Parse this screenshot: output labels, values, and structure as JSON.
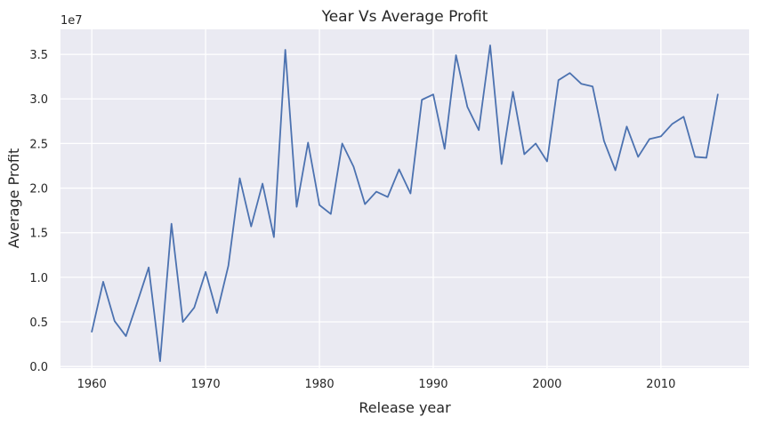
{
  "chart_data": {
    "type": "line",
    "title": "Year Vs Average Profit",
    "xlabel": "Release year",
    "ylabel": "Average Profit",
    "y_offset_label": "1e7",
    "xlim": [
      1957.25,
      2017.75
    ],
    "ylim": [
      -0.18,
      37.8
    ],
    "x_ticks": [
      1960,
      1970,
      1980,
      1990,
      2000,
      2010
    ],
    "x_tick_labels": [
      "1960",
      "1970",
      "1980",
      "1990",
      "2000",
      "2010"
    ],
    "y_ticks": [
      0,
      5,
      10,
      15,
      20,
      25,
      30,
      35
    ],
    "y_tick_labels": [
      "0.0",
      "0.5",
      "1.0",
      "1.5",
      "2.0",
      "2.5",
      "3.0",
      "3.5"
    ],
    "grid": true,
    "series": [
      {
        "name": "Average Profit",
        "color": "#4c72b0",
        "x": [
          1960,
          1961,
          1962,
          1963,
          1964,
          1965,
          1966,
          1967,
          1968,
          1969,
          1970,
          1971,
          1972,
          1973,
          1974,
          1975,
          1976,
          1977,
          1978,
          1979,
          1980,
          1981,
          1982,
          1983,
          1984,
          1985,
          1986,
          1987,
          1988,
          1989,
          1990,
          1991,
          1992,
          1993,
          1994,
          1995,
          1996,
          1997,
          1998,
          1999,
          2000,
          2001,
          2002,
          2003,
          2004,
          2005,
          2006,
          2007,
          2008,
          2009,
          2010,
          2011,
          2012,
          2013,
          2014,
          2015
        ],
        "y": [
          3.9,
          9.5,
          5.1,
          3.4,
          7.2,
          11.1,
          0.6,
          16.0,
          5.0,
          6.6,
          10.6,
          6.0,
          11.3,
          21.1,
          15.7,
          20.5,
          14.5,
          35.5,
          17.9,
          25.1,
          18.1,
          17.1,
          25.0,
          22.4,
          18.2,
          19.6,
          19.0,
          22.1,
          19.4,
          29.9,
          30.5,
          24.4,
          34.9,
          29.1,
          26.5,
          36.0,
          22.7,
          30.8,
          23.8,
          25.0,
          23.0,
          32.1,
          32.9,
          31.7,
          31.4,
          25.3,
          22.0,
          26.9,
          23.5,
          25.5,
          25.8,
          27.2,
          28.0,
          23.5,
          23.4,
          30.5
        ]
      }
    ]
  },
  "colors": {
    "plot_background": "#eaeaf2",
    "grid": "#ffffff",
    "line": "#4c72b0",
    "text": "#262626"
  }
}
